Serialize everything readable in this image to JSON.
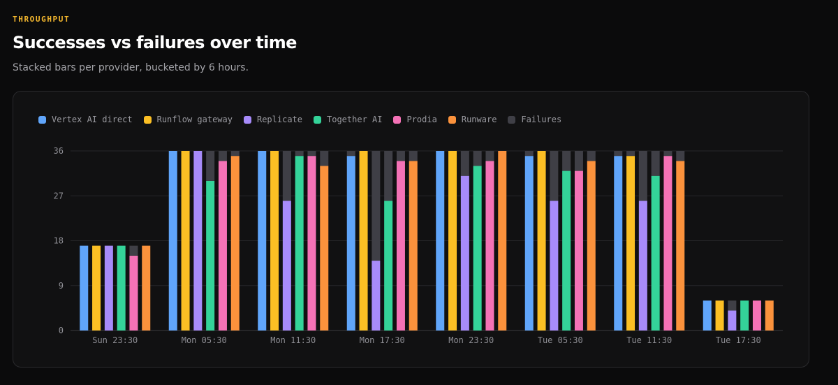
{
  "header": {
    "eyebrow": "THROUGHPUT",
    "title": "Successes vs failures over time",
    "subtitle": "Stacked bars per provider, bucketed by 6 hours."
  },
  "legend": [
    {
      "label": "Vertex AI direct",
      "color": "#60a5fa"
    },
    {
      "label": "Runflow gateway",
      "color": "#fbbf24"
    },
    {
      "label": "Replicate",
      "color": "#a78bfa"
    },
    {
      "label": "Together AI",
      "color": "#34d399"
    },
    {
      "label": "Prodia",
      "color": "#f472b6"
    },
    {
      "label": "Runware",
      "color": "#fb923c"
    },
    {
      "label": "Failures",
      "color": "#3f3f46"
    }
  ],
  "chart_data": {
    "type": "bar",
    "stacked": true,
    "title": "Successes vs failures over time",
    "xlabel": "",
    "ylabel": "",
    "ylim": [
      0,
      36
    ],
    "yticks": [
      0,
      9,
      18,
      27,
      36
    ],
    "grid": true,
    "legend_position": "top-left",
    "categories": [
      "Sun 23:30",
      "Mon 05:30",
      "Mon 11:30",
      "Mon 17:30",
      "Mon 23:30",
      "Tue 05:30",
      "Tue 11:30",
      "Tue 17:30"
    ],
    "providers": [
      "Vertex AI direct",
      "Runflow gateway",
      "Replicate",
      "Together AI",
      "Prodia",
      "Runware"
    ],
    "series": [
      {
        "name": "Vertex AI direct",
        "successes": [
          17,
          36,
          36,
          35,
          36,
          35,
          35,
          6
        ],
        "failures": [
          0,
          0,
          0,
          1,
          0,
          1,
          1,
          0
        ]
      },
      {
        "name": "Runflow gateway",
        "successes": [
          17,
          36,
          36,
          36,
          36,
          36,
          35,
          6
        ],
        "failures": [
          0,
          0,
          0,
          0,
          0,
          0,
          1,
          0
        ]
      },
      {
        "name": "Replicate",
        "successes": [
          17,
          36,
          26,
          14,
          31,
          26,
          26,
          4
        ],
        "failures": [
          0,
          0,
          10,
          22,
          5,
          10,
          10,
          2
        ]
      },
      {
        "name": "Together AI",
        "successes": [
          17,
          30,
          35,
          26,
          33,
          32,
          31,
          6
        ],
        "failures": [
          0,
          6,
          1,
          10,
          3,
          4,
          5,
          0
        ]
      },
      {
        "name": "Prodia",
        "successes": [
          15,
          34,
          35,
          34,
          34,
          32,
          35,
          6
        ],
        "failures": [
          2,
          2,
          1,
          2,
          2,
          4,
          1,
          0
        ]
      },
      {
        "name": "Runware",
        "successes": [
          17,
          35,
          33,
          34,
          36,
          34,
          34,
          6
        ],
        "failures": [
          0,
          1,
          3,
          2,
          0,
          2,
          2,
          0
        ]
      }
    ]
  }
}
